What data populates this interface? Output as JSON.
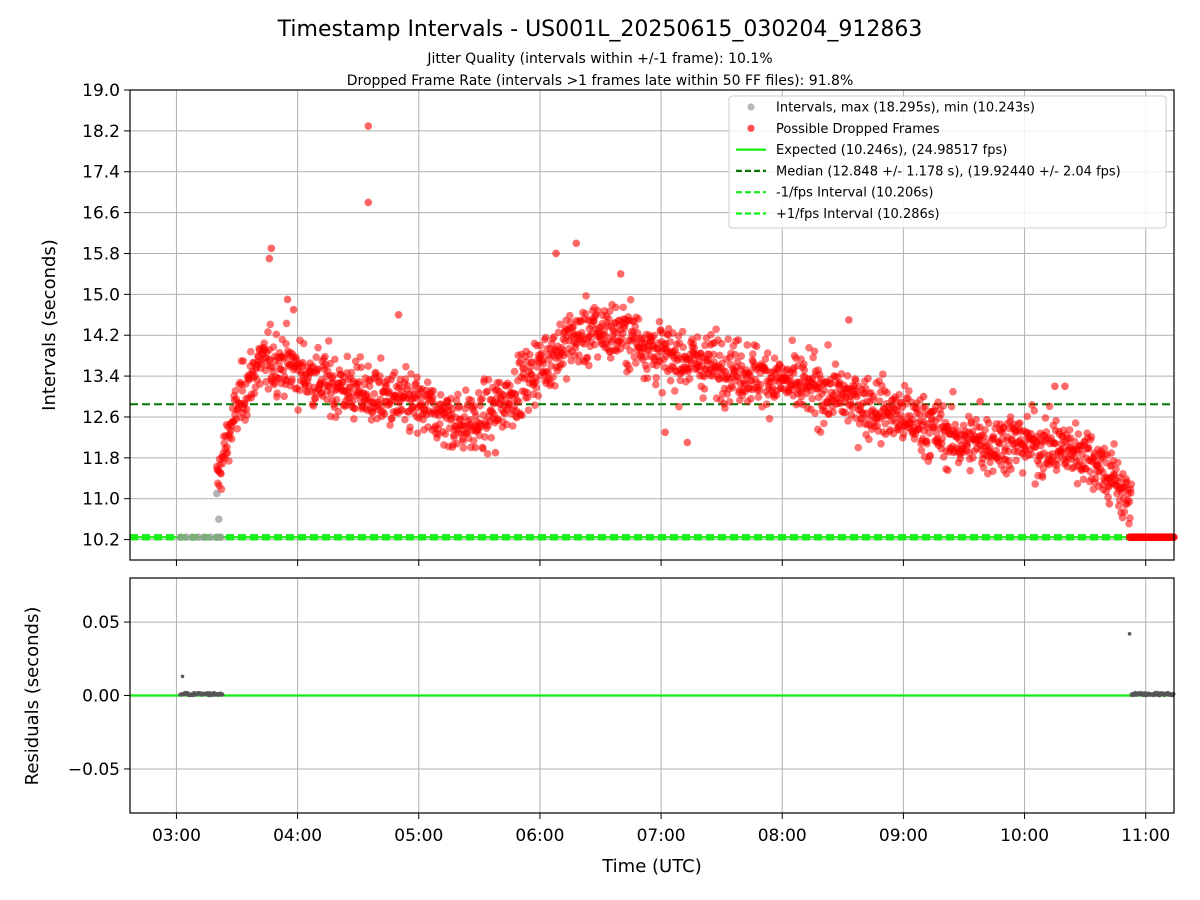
{
  "figure": {
    "title": "Timestamp Intervals - US001L_20250615_030204_912863",
    "subtitle1": "Jitter Quality (intervals within +/-1 frame): 10.1%",
    "subtitle2": "Dropped Frame Rate (intervals >1 frames late within 50 FF files): 91.8%",
    "colors": {
      "intervals": "#999999",
      "dropped": "#ff0000",
      "expected": "#11ee11",
      "median": "#007700",
      "fps_band": "#11ee11",
      "residuals": "#555555",
      "grid": "#b0b0b0"
    }
  },
  "chart_data": [
    {
      "type": "scatter",
      "panel": "intervals",
      "xlabel": "",
      "ylabel": "Intervals (seconds)",
      "x_unit": "time UTC (HH:MM)",
      "xlim": [
        "02:37",
        "11:14"
      ],
      "ylim": [
        9.8,
        19.0
      ],
      "yticks": [
        "10.2",
        "11.0",
        "11.8",
        "12.6",
        "13.4",
        "14.2",
        "15.0",
        "15.8",
        "16.6",
        "17.4",
        "18.2",
        "19.0"
      ],
      "xticks": [
        "03:00",
        "04:00",
        "05:00",
        "06:00",
        "07:00",
        "08:00",
        "09:00",
        "10:00",
        "11:00"
      ],
      "grid": true,
      "legend_position": "top-right",
      "legend": [
        "Intervals, max (18.295s), min (10.243s)",
        "Possible Dropped Frames",
        "Expected (10.246s), (24.98517 fps)",
        "Median (12.848 +/- 1.178 s), (19.92440 +/- 2.04 fps)",
        "-1/fps Interval (10.206s)",
        "+1/fps Interval (10.286s)"
      ],
      "reference_lines": {
        "expected": 10.246,
        "median": 12.848,
        "minus_1fps": 10.206,
        "plus_1fps": 10.286
      },
      "normal_intervals": [
        [
          "03:02",
          10.246
        ],
        [
          "03:05",
          10.246
        ],
        [
          "03:08",
          10.246
        ],
        [
          "03:11",
          10.246
        ],
        [
          "03:14",
          10.246
        ],
        [
          "03:17",
          10.246
        ],
        [
          "03:20",
          10.246
        ],
        [
          "03:22",
          10.246
        ],
        [
          "03:20",
          11.1
        ],
        [
          "03:21",
          10.6
        ]
      ],
      "dropped_trend": [
        [
          "03:20",
          11.3
        ],
        [
          "03:25",
          12.1
        ],
        [
          "03:30",
          12.8
        ],
        [
          "03:40",
          13.6
        ],
        [
          "03:50",
          13.7
        ],
        [
          "04:00",
          13.5
        ],
        [
          "04:20",
          13.2
        ],
        [
          "04:40",
          13.0
        ],
        [
          "05:00",
          12.8
        ],
        [
          "05:20",
          12.5
        ],
        [
          "05:30",
          12.5
        ],
        [
          "05:45",
          13.0
        ],
        [
          "06:00",
          13.6
        ],
        [
          "06:15",
          14.1
        ],
        [
          "06:30",
          14.3
        ],
        [
          "06:45",
          14.2
        ],
        [
          "07:00",
          13.8
        ],
        [
          "07:30",
          13.6
        ],
        [
          "08:00",
          13.3
        ],
        [
          "08:30",
          13.0
        ],
        [
          "09:00",
          12.6
        ],
        [
          "09:30",
          12.1
        ],
        [
          "10:00",
          12.1
        ],
        [
          "10:30",
          11.9
        ],
        [
          "10:45",
          11.4
        ],
        [
          "10:53",
          10.8
        ]
      ],
      "dropped_outliers": [
        [
          "04:35",
          18.295
        ],
        [
          "04:35",
          16.8
        ],
        [
          "03:47",
          15.9
        ],
        [
          "03:46",
          15.7
        ],
        [
          "06:08",
          15.8
        ],
        [
          "06:18",
          16.0
        ],
        [
          "06:40",
          15.4
        ],
        [
          "03:58",
          14.7
        ],
        [
          "03:55",
          14.9
        ],
        [
          "04:50",
          14.6
        ],
        [
          "08:33",
          14.5
        ],
        [
          "07:13",
          12.1
        ],
        [
          "07:02",
          12.3
        ],
        [
          "05:28",
          12.0
        ],
        [
          "05:38",
          11.9
        ],
        [
          "10:42",
          10.9
        ],
        [
          "10:15",
          13.2
        ],
        [
          "10:20",
          13.2
        ],
        [
          "09:10",
          13.0
        ],
        [
          "09:38",
          12.9
        ]
      ],
      "dropped_tail": {
        "from": "10:52",
        "to": "11:14",
        "value": 10.246
      }
    },
    {
      "type": "scatter",
      "panel": "residuals",
      "xlabel": "Time (UTC)",
      "ylabel": "Residuals (seconds)",
      "xlim": [
        "02:37",
        "11:14"
      ],
      "ylim": [
        -0.08,
        0.08
      ],
      "yticks": [
        "−0.05",
        "0.00",
        "0.05"
      ],
      "xticks": [
        "03:00",
        "04:00",
        "05:00",
        "06:00",
        "07:00",
        "08:00",
        "09:00",
        "10:00",
        "11:00"
      ],
      "grid": true,
      "zero_line": 0.0,
      "points": [
        [
          "03:03",
          0.013
        ],
        [
          "10:52",
          0.042
        ],
        {
          "from": "03:02",
          "to": "03:23",
          "value": 0.001
        },
        {
          "from": "10:53",
          "to": "11:14",
          "value": 0.001
        }
      ]
    }
  ]
}
